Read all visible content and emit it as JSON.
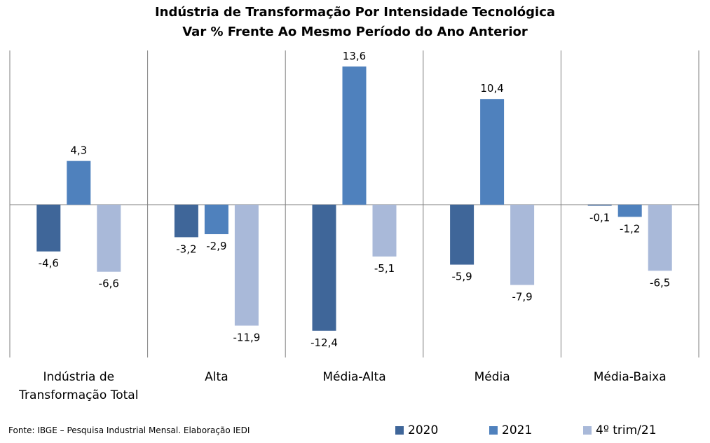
{
  "chart_data": {
    "type": "bar",
    "title": "Indústria de Transformação Por Intensidade Tecnológica",
    "subtitle": "Var % Frente Ao Mesmo Período do Ano Anterior",
    "categories": [
      "Indústria de Transformação Total",
      "Alta",
      "Média-Alta",
      "Média",
      "Média-Baixa"
    ],
    "category_lines": [
      [
        "Indústria de",
        "Transformação Total"
      ],
      [
        "Alta"
      ],
      [
        "Média-Alta"
      ],
      [
        "Média"
      ],
      [
        "Média-Baixa"
      ]
    ],
    "series": [
      {
        "name": "2020",
        "color": "#3f6699",
        "values": [
          -4.6,
          -3.2,
          -12.4,
          -5.9,
          -0.1
        ],
        "labels": [
          "-4,6",
          "-3,2",
          "-12,4",
          "-5,9",
          "-0,1"
        ]
      },
      {
        "name": "2021",
        "color": "#4f81bd",
        "values": [
          4.3,
          -2.9,
          13.6,
          10.4,
          -1.2
        ],
        "labels": [
          "4,3",
          "-2,9",
          "13,6",
          "10,4",
          "-1,2"
        ]
      },
      {
        "name": "4º trim/21",
        "color": "#a9b9d9",
        "values": [
          -6.6,
          -11.9,
          -5.1,
          -7.9,
          -6.5
        ],
        "labels": [
          "-6,6",
          "-11,9",
          "-5,1",
          "-7,9",
          "-6,5"
        ]
      }
    ],
    "ylim": [
      -15,
      15
    ],
    "grid": false,
    "legend_position": "bottom-right"
  },
  "source": "Fonte: IBGE – Pesquisa Industrial Mensal. Elaboração IEDI"
}
